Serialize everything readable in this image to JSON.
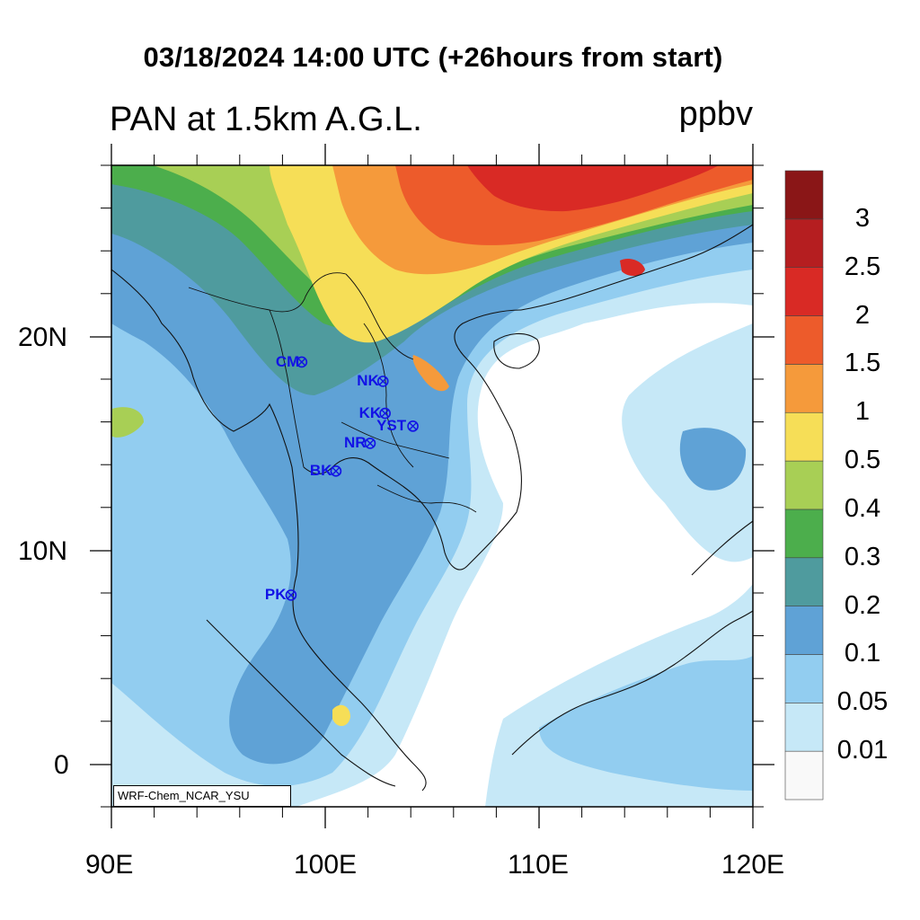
{
  "header": {
    "title": "03/18/2024 14:00 UTC (+26hours from start)",
    "subtitle": "PAN at 1.5km A.G.L.",
    "units": "ppbv"
  },
  "map": {
    "lon_range": [
      90,
      120
    ],
    "lat_range": [
      -2,
      28
    ],
    "x_ticks": [
      "90E",
      "100E",
      "110E",
      "120E"
    ],
    "y_ticks": [
      "20N",
      "10N",
      "0"
    ],
    "credit": "WRF-Chem_NCAR_YSU"
  },
  "stations": [
    {
      "label": "CM",
      "lon": 98.9,
      "lat": 18.8
    },
    {
      "label": "NK",
      "lon": 102.7,
      "lat": 17.9
    },
    {
      "label": "KK",
      "lon": 102.8,
      "lat": 16.4
    },
    {
      "label": "YST",
      "lon": 104.1,
      "lat": 15.8
    },
    {
      "label": "NR",
      "lon": 102.1,
      "lat": 15.0
    },
    {
      "label": "BK",
      "lon": 100.5,
      "lat": 13.7
    },
    {
      "label": "PK",
      "lon": 98.4,
      "lat": 7.9
    }
  ],
  "colorbar": {
    "labels": [
      "3",
      "2.5",
      "2",
      "1.5",
      "1",
      "0.5",
      "0.4",
      "0.3",
      "0.2",
      "0.1",
      "0.05",
      "0.01"
    ],
    "colors": [
      "#f9f9f9",
      "#c6e8f7",
      "#92cdf0",
      "#5fa2d6",
      "#4f9b9e",
      "#4cae4c",
      "#a8cf55",
      "#f6de57",
      "#f59a3b",
      "#ed5b2b",
      "#d92a25",
      "#b51e20",
      "#8a1617"
    ]
  }
}
